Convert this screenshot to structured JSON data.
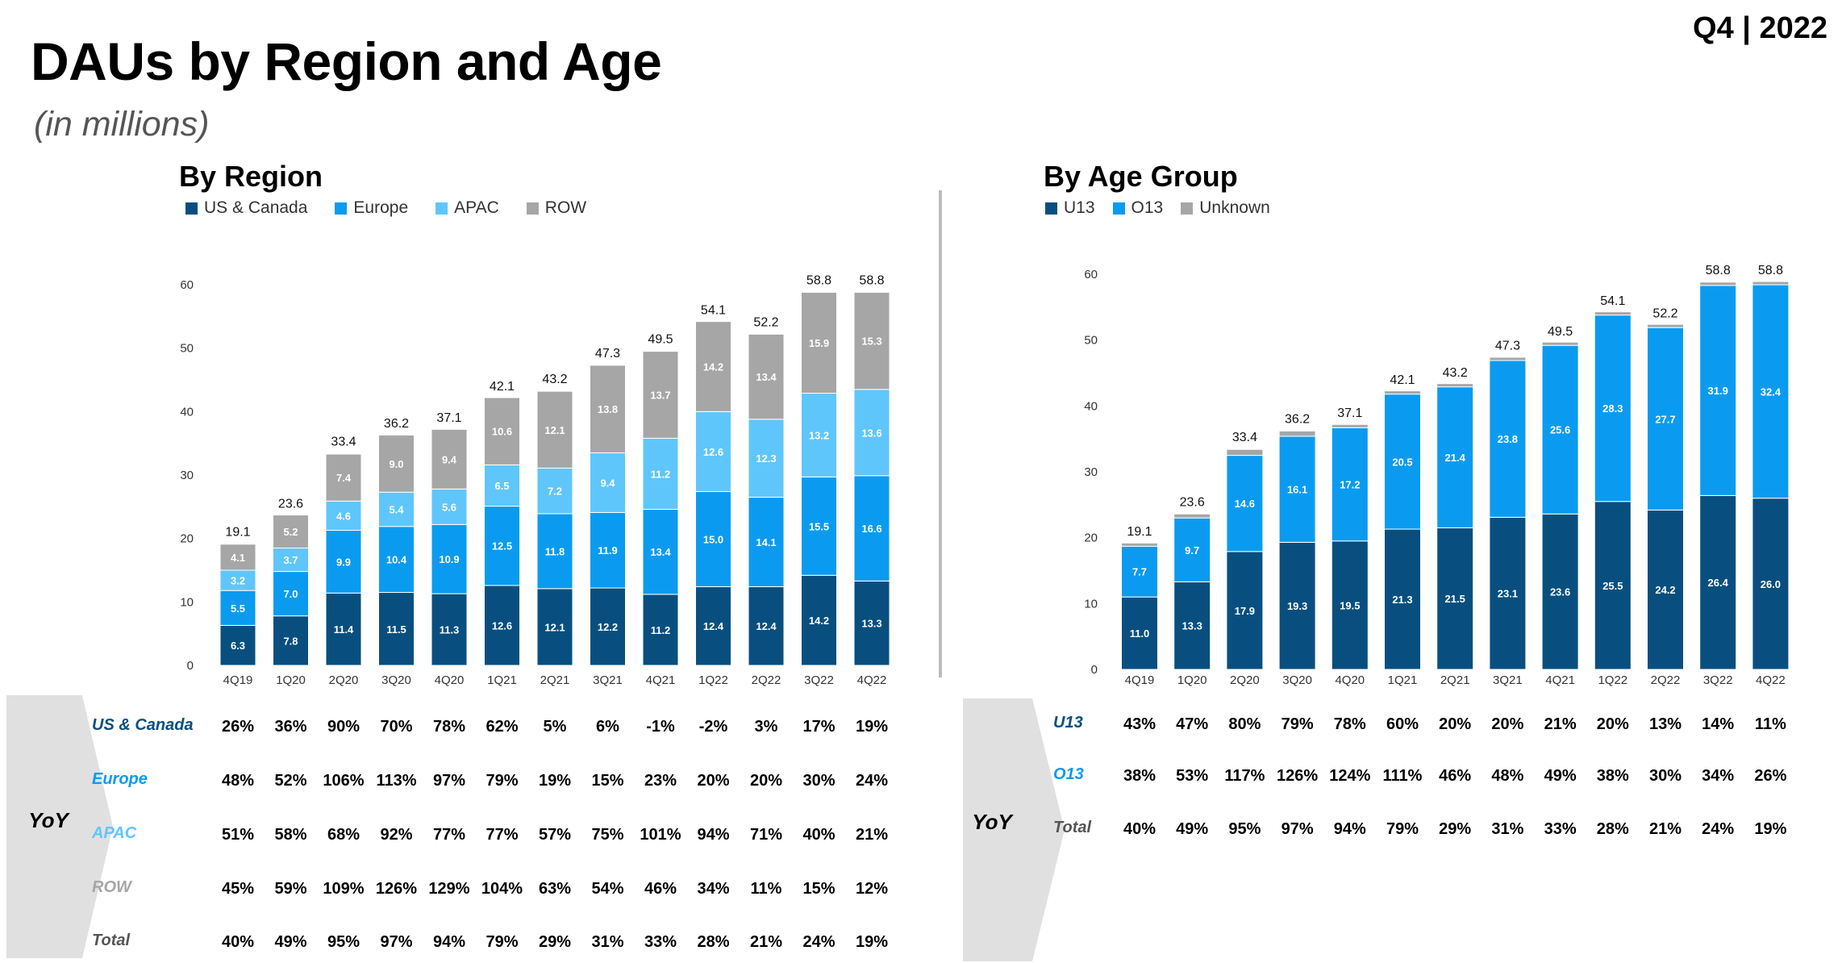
{
  "header": {
    "title": "DAUs by Region and Age",
    "subtitle": "(in millions)",
    "period": "Q4 | 2022"
  },
  "colors": {
    "us_canada": "#084f7f",
    "europe": "#0a9bf0",
    "apac": "#5fc6fb",
    "row": "#a6a6a6",
    "u13": "#084f7f",
    "o13": "#0a9bf0",
    "unknown": "#a6a6a6",
    "yoy_band": "#e0e0e0"
  },
  "yoy_label": "YoY",
  "chart_data": [
    {
      "type": "bar",
      "stacked": true,
      "title": "By Region",
      "categories": [
        "4Q19",
        "1Q20",
        "2Q20",
        "3Q20",
        "4Q20",
        "1Q21",
        "2Q21",
        "3Q21",
        "4Q21",
        "1Q22",
        "2Q22",
        "3Q22",
        "4Q22"
      ],
      "ylim": [
        0,
        60
      ],
      "yticks": [
        "0",
        "10",
        "20",
        "30",
        "40",
        "50",
        "60"
      ],
      "grid": false,
      "legend_position": "top-left",
      "series": [
        {
          "name": "US & Canada",
          "color_key": "us_canada",
          "values": [
            6.3,
            7.8,
            11.4,
            11.5,
            11.3,
            12.6,
            12.1,
            12.2,
            11.2,
            12.4,
            12.4,
            14.2,
            13.3
          ]
        },
        {
          "name": "Europe",
          "color_key": "europe",
          "values": [
            5.5,
            7.0,
            9.9,
            10.4,
            10.9,
            12.5,
            11.8,
            11.9,
            13.4,
            15.0,
            14.1,
            15.5,
            16.6
          ]
        },
        {
          "name": "APAC",
          "color_key": "apac",
          "values": [
            3.2,
            3.7,
            4.6,
            5.4,
            5.6,
            6.5,
            7.2,
            9.4,
            11.2,
            12.6,
            12.3,
            13.2,
            13.6
          ]
        },
        {
          "name": "ROW",
          "color_key": "row",
          "values": [
            4.1,
            5.2,
            7.4,
            9.0,
            9.4,
            10.6,
            12.1,
            13.8,
            13.7,
            14.2,
            13.4,
            15.9,
            15.3
          ]
        }
      ],
      "totals": [
        19.1,
        23.6,
        33.4,
        36.2,
        37.1,
        42.1,
        43.2,
        47.3,
        49.5,
        54.1,
        52.2,
        58.8,
        58.8
      ],
      "yoy_rows": [
        {
          "label": "US & Canada",
          "color_key": "us_canada",
          "values": [
            "26%",
            "36%",
            "90%",
            "70%",
            "78%",
            "62%",
            "5%",
            "6%",
            "-1%",
            "-2%",
            "3%",
            "17%",
            "19%"
          ]
        },
        {
          "label": "Europe",
          "color_key": "europe",
          "values": [
            "48%",
            "52%",
            "106%",
            "113%",
            "97%",
            "79%",
            "19%",
            "15%",
            "23%",
            "20%",
            "20%",
            "30%",
            "24%"
          ]
        },
        {
          "label": "APAC",
          "color_key": "apac",
          "values": [
            "51%",
            "58%",
            "68%",
            "92%",
            "77%",
            "77%",
            "57%",
            "75%",
            "101%",
            "94%",
            "71%",
            "40%",
            "21%"
          ]
        },
        {
          "label": "ROW",
          "color_key": "row",
          "values": [
            "45%",
            "59%",
            "109%",
            "126%",
            "129%",
            "104%",
            "63%",
            "54%",
            "46%",
            "34%",
            "11%",
            "15%",
            "12%"
          ]
        },
        {
          "label": "Total",
          "color_key": "total",
          "values": [
            "40%",
            "49%",
            "95%",
            "97%",
            "94%",
            "79%",
            "29%",
            "31%",
            "33%",
            "28%",
            "21%",
            "24%",
            "19%"
          ]
        }
      ]
    },
    {
      "type": "bar",
      "stacked": true,
      "title": "By Age Group",
      "categories": [
        "4Q19",
        "1Q20",
        "2Q20",
        "3Q20",
        "4Q20",
        "1Q21",
        "2Q21",
        "3Q21",
        "4Q21",
        "1Q22",
        "2Q22",
        "3Q22",
        "4Q22"
      ],
      "ylim": [
        0,
        60
      ],
      "yticks": [
        "0",
        "10",
        "20",
        "30",
        "40",
        "50",
        "60"
      ],
      "grid": false,
      "legend_position": "top-left",
      "series": [
        {
          "name": "U13",
          "color_key": "u13",
          "values": [
            11.0,
            13.3,
            17.9,
            19.3,
            19.5,
            21.3,
            21.5,
            23.1,
            23.6,
            25.5,
            24.2,
            26.4,
            26.0
          ]
        },
        {
          "name": "O13",
          "color_key": "o13",
          "values": [
            7.7,
            9.7,
            14.6,
            16.1,
            17.2,
            20.5,
            21.4,
            23.8,
            25.6,
            28.3,
            27.7,
            31.9,
            32.4
          ]
        },
        {
          "name": "Unknown",
          "color_key": "unknown",
          "values": [
            0.4,
            0.6,
            0.9,
            0.8,
            0.4,
            0.3,
            0.3,
            0.4,
            0.3,
            0.3,
            0.3,
            0.5,
            0.4
          ]
        }
      ],
      "label_series": [
        "U13",
        "O13"
      ],
      "totals": [
        19.1,
        23.6,
        33.4,
        36.2,
        37.1,
        42.1,
        43.2,
        47.3,
        49.5,
        54.1,
        52.2,
        58.8,
        58.8
      ],
      "yoy_rows": [
        {
          "label": "U13",
          "color_key": "u13",
          "values": [
            "43%",
            "47%",
            "80%",
            "79%",
            "78%",
            "60%",
            "20%",
            "20%",
            "21%",
            "20%",
            "13%",
            "14%",
            "11%"
          ]
        },
        {
          "label": "O13",
          "color_key": "o13",
          "values": [
            "38%",
            "53%",
            "117%",
            "126%",
            "124%",
            "111%",
            "46%",
            "48%",
            "49%",
            "38%",
            "30%",
            "34%",
            "26%"
          ]
        },
        {
          "label": "Total",
          "color_key": "total",
          "values": [
            "40%",
            "49%",
            "95%",
            "97%",
            "94%",
            "79%",
            "29%",
            "31%",
            "33%",
            "28%",
            "21%",
            "24%",
            "19%"
          ]
        }
      ]
    }
  ]
}
